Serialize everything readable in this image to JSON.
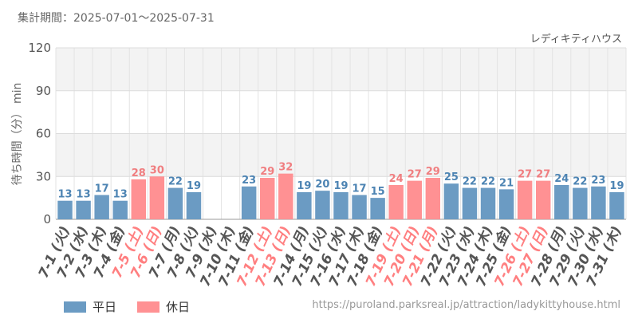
{
  "header": {
    "period": "集計期間：2025-07-01～2025-07-31"
  },
  "colors": {
    "weekday": "#6b9bc3",
    "holiday": "#ff9193",
    "holiday_text": "#ff7f80",
    "weekday_text": "#555555",
    "label_weekday": "#4d84b3",
    "label_holiday": "#f07e80"
  },
  "chart_data": {
    "type": "bar",
    "attraction": "レディキティハウス",
    "ylabel": "待ち時間（分） min",
    "ylim": [
      0,
      120
    ],
    "yticks": [
      "0",
      "30",
      "60",
      "90",
      "120"
    ],
    "grid": true,
    "categories": [
      "7-1 (火)",
      "7-2 (水)",
      "7-3 (木)",
      "7-4 (金)",
      "7-5 (土)",
      "7-6 (日)",
      "7-7 (月)",
      "7-8 (火)",
      "7-9 (水)",
      "7-10 (木)",
      "7-11 (金)",
      "7-12 (土)",
      "7-13 (日)",
      "7-14 (月)",
      "7-15 (火)",
      "7-16 (水)",
      "7-17 (木)",
      "7-18 (金)",
      "7-19 (土)",
      "7-20 (日)",
      "7-21 (月)",
      "7-22 (火)",
      "7-23 (水)",
      "7-24 (木)",
      "7-25 (金)",
      "7-26 (土)",
      "7-27 (日)",
      "7-28 (月)",
      "7-29 (火)",
      "7-30 (水)",
      "7-31 (木)"
    ],
    "values": [
      13,
      13,
      17,
      13,
      28,
      30,
      22,
      19,
      null,
      null,
      23,
      29,
      32,
      19,
      20,
      19,
      17,
      15,
      24,
      27,
      29,
      25,
      22,
      22,
      21,
      27,
      27,
      24,
      22,
      23,
      19
    ],
    "holiday": [
      false,
      false,
      false,
      false,
      true,
      true,
      false,
      false,
      false,
      false,
      false,
      true,
      true,
      false,
      false,
      false,
      false,
      false,
      true,
      true,
      true,
      false,
      false,
      false,
      false,
      true,
      true,
      false,
      false,
      false,
      false
    ],
    "legend": [
      {
        "name": "平日",
        "key": "weekday"
      },
      {
        "name": "休日",
        "key": "holiday"
      }
    ]
  },
  "footer": {
    "url": "https://puroland.parksreal.jp/attraction/ladykittyhouse.html"
  }
}
